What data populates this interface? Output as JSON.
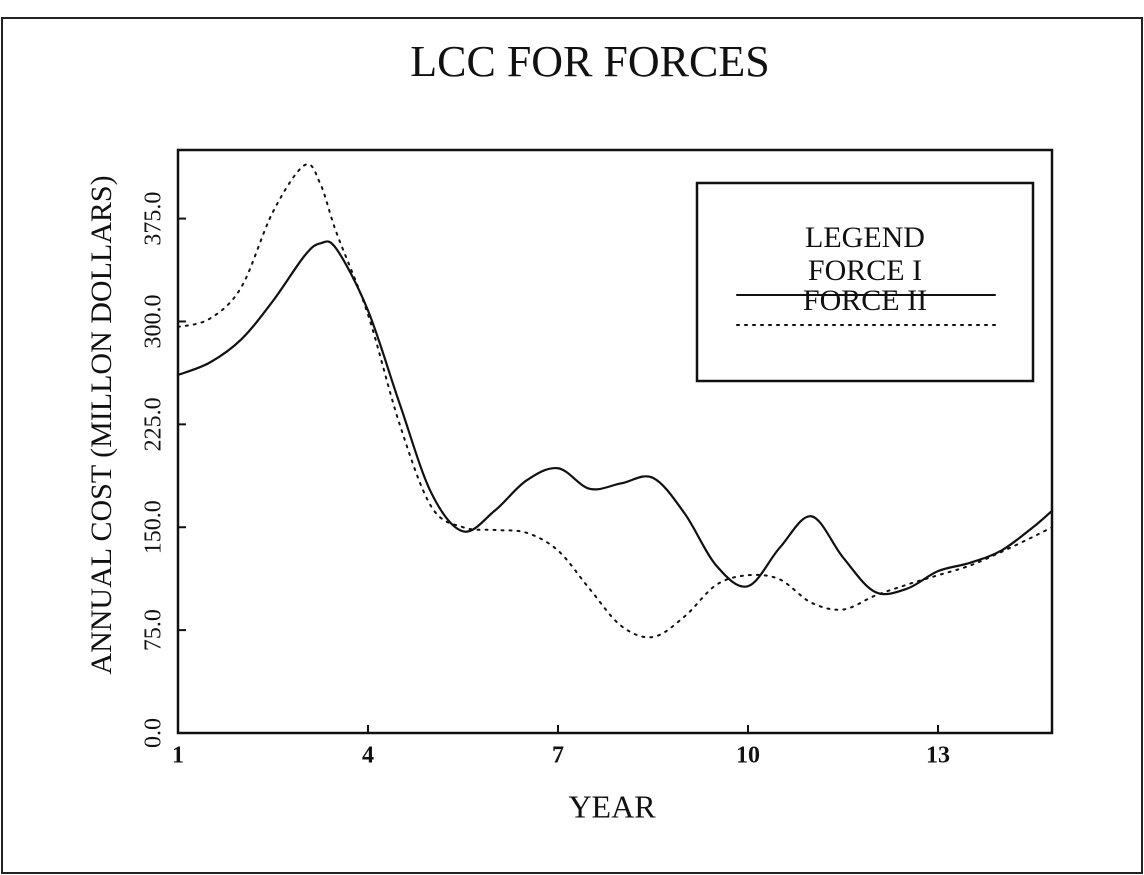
{
  "chart_data": {
    "type": "line",
    "title": "LCC FOR FORCES",
    "xlabel": "YEAR",
    "ylabel": "ANNUAL COST (MILLON DOLLARS)",
    "legend_title": "LEGEND",
    "legend_position": "upper right",
    "x": [
      1,
      1.5,
      2,
      2.5,
      3,
      3.25,
      3.5,
      4,
      4.5,
      5,
      5.5,
      6,
      6.5,
      7,
      7.5,
      8,
      8.5,
      9,
      9.5,
      10,
      10.5,
      11,
      11.5,
      12,
      12.5,
      13,
      13.5,
      14,
      14.5,
      14.8
    ],
    "series": [
      {
        "name": "FORCE I",
        "color": "#111111",
        "style": "solid",
        "values": [
          261,
          270,
          287,
          315,
          348,
          357,
          353,
          308,
          240,
          175,
          147,
          162,
          184,
          193,
          178,
          182,
          186,
          160,
          122,
          107,
          135,
          158,
          128,
          103,
          105,
          118,
          124,
          133,
          150,
          162
        ]
      },
      {
        "name": "FORCE II",
        "color": "#111111",
        "style": "dotted",
        "values": [
          296,
          302,
          325,
          380,
          414,
          400,
          365,
          305,
          225,
          165,
          150,
          148,
          146,
          133,
          105,
          78,
          70,
          85,
          108,
          115,
          112,
          95,
          90,
          100,
          108,
          115,
          122,
          132,
          143,
          150
        ]
      }
    ],
    "xlim": [
      1,
      14.8
    ],
    "xticks": [
      1,
      4,
      7,
      10,
      13
    ],
    "ylim": [
      0,
      425
    ],
    "yticks": [
      {
        "value": 0,
        "label": "0.0"
      },
      {
        "value": 75,
        "label": "75.0"
      },
      {
        "value": 150,
        "label": "150.0"
      },
      {
        "value": 225,
        "label": "225.0"
      },
      {
        "value": 300,
        "label": "300.0"
      },
      {
        "value": 375,
        "label": "375.0"
      }
    ]
  }
}
